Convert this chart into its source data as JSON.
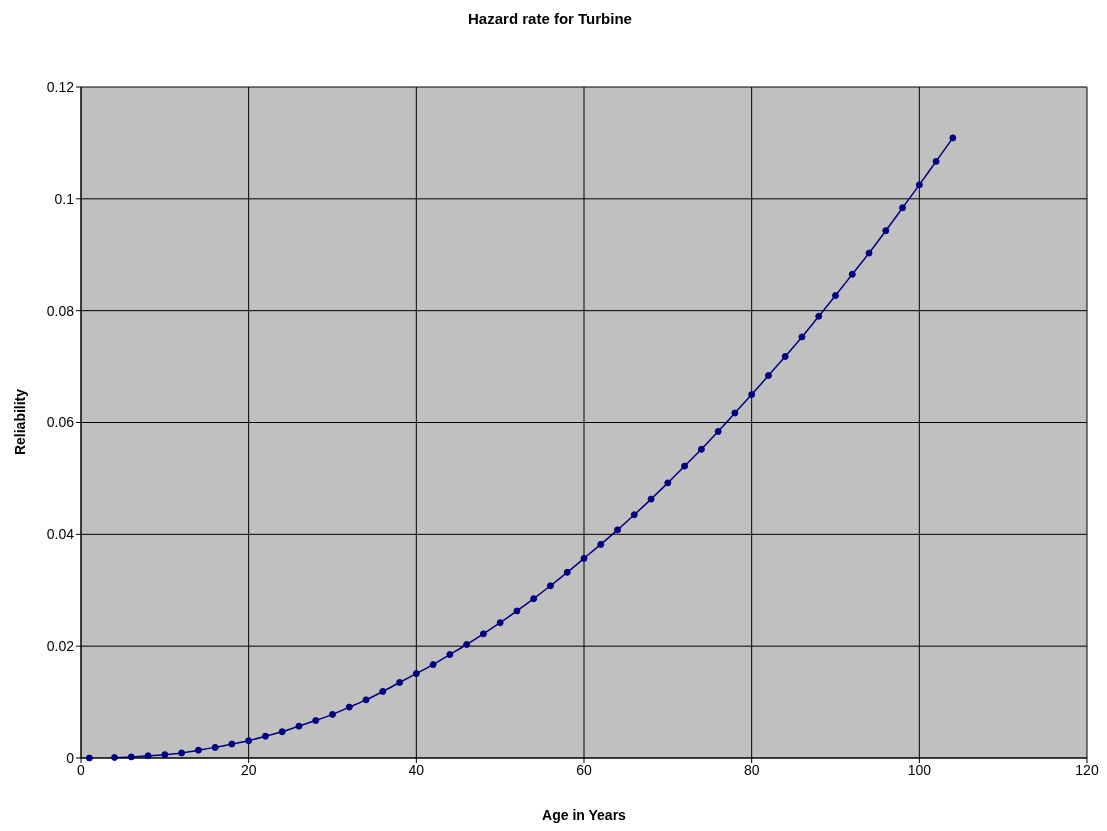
{
  "chart_data": {
    "type": "line",
    "title": "Hazard rate for Turbine",
    "xlabel": "Age in Years",
    "ylabel": "Reliability",
    "series": [
      {
        "color": "#000080",
        "x": [
          1,
          2,
          3,
          4,
          6,
          8,
          10,
          12,
          14,
          16,
          18,
          20,
          22,
          24,
          26,
          28,
          30,
          32,
          34,
          36,
          38,
          40,
          42,
          44,
          46,
          48,
          50,
          52,
          54,
          56,
          58,
          60,
          62,
          64,
          66,
          68,
          70,
          72,
          74,
          76,
          78,
          80,
          82,
          84,
          86,
          88,
          90,
          92,
          94,
          96,
          98,
          100,
          102,
          104
        ],
        "values": [
          0,
          null,
          null,
          0.0001,
          0.0002,
          0.0004,
          0.0006,
          0.0009,
          0.0014,
          0.0019,
          0.0025,
          0.0031,
          0.0039,
          0.0047,
          0.0057,
          0.0067,
          0.0078,
          0.0091,
          0.0104,
          0.0119,
          0.0135,
          0.0151,
          0.0167,
          0.0185,
          0.0203,
          0.0222,
          0.0242,
          0.0263,
          0.0285,
          0.0308,
          0.0332,
          0.0357,
          0.0382,
          0.0408,
          0.0435,
          0.0463,
          0.0492,
          0.0522,
          0.0552,
          0.0584,
          0.0617,
          0.065,
          0.0684,
          0.0718,
          0.0753,
          0.079,
          0.0827,
          0.0865,
          0.0903,
          0.0943,
          0.0984,
          0.1025,
          0.1067,
          0.1109
        ]
      }
    ],
    "xlim": [
      0,
      120
    ],
    "xticks": [
      0,
      20,
      40,
      60,
      80,
      100,
      120
    ],
    "ylim": [
      0,
      0.12
    ],
    "yticks": [
      0,
      0.02,
      0.04,
      0.06,
      0.08,
      0.1,
      0.12
    ],
    "grid": true,
    "marker": "circle",
    "line_style": "solid"
  }
}
